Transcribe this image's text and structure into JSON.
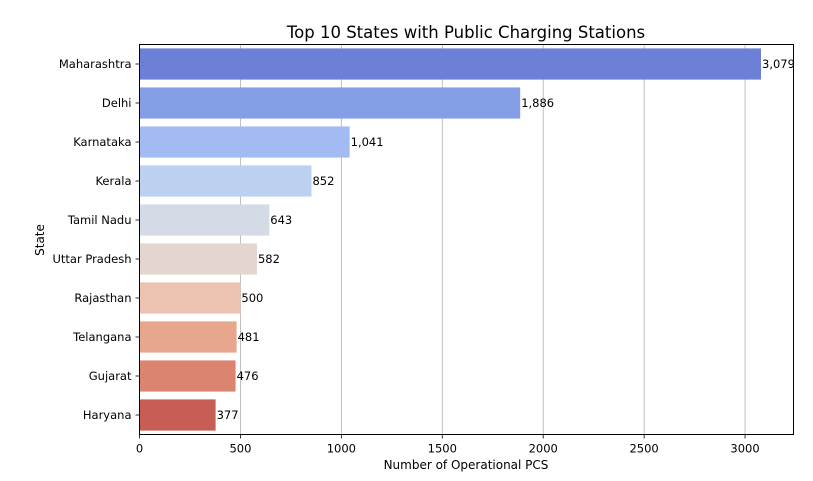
{
  "chart_data": {
    "type": "bar",
    "orientation": "horizontal",
    "title": "Top 10 States with Public Charging Stations",
    "xlabel": "Number of Operational PCS",
    "ylabel": "State",
    "categories": [
      "Maharashtra",
      "Delhi",
      "Karnataka",
      "Kerala",
      "Tamil Nadu",
      "Uttar Pradesh",
      "Rajasthan",
      "Telangana",
      "Gujarat",
      "Haryana"
    ],
    "values": [
      3079,
      1886,
      1041,
      852,
      643,
      582,
      500,
      481,
      476,
      377
    ],
    "value_labels": [
      "3,079",
      "1,886",
      "1,041",
      "852",
      "643",
      "582",
      "500",
      "481",
      "476",
      "377"
    ],
    "colors": [
      "#6b80d6",
      "#849fe6",
      "#a2bcf3",
      "#bcd0f0",
      "#d4dbe6",
      "#e4d6cf",
      "#ecc3b0",
      "#e8a78d",
      "#db8570",
      "#c65e55"
    ],
    "xlim": [
      0,
      3240
    ],
    "xticks": [
      0,
      500,
      1000,
      1500,
      2000,
      2500,
      3000
    ],
    "grid": "x"
  }
}
